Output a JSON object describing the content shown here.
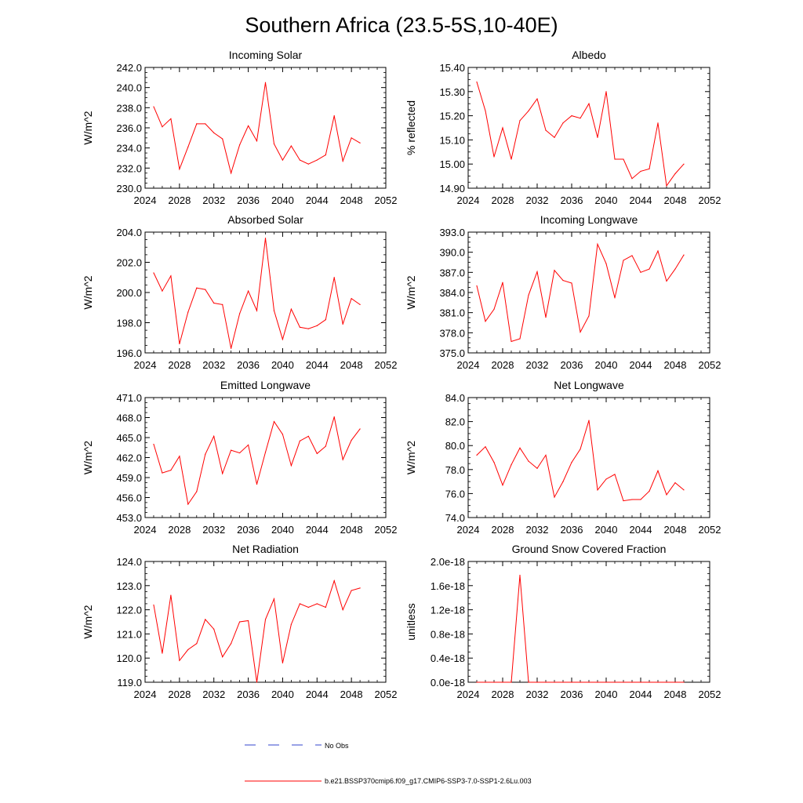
{
  "title": "Southern Africa (23.5-5S,10-40E)",
  "legend": [
    {
      "label": "No Obs",
      "color": "#3344cc",
      "style": "dashed"
    },
    {
      "label": "b.e21.BSSP370cmip6.f09_g17.CMIP6-SSP3-7.0-SSP1-2.6Lu.003",
      "color": "#ff0000",
      "style": "solid"
    }
  ],
  "chart_data": [
    {
      "type": "line",
      "title": "Incoming Solar",
      "ylabel": "W/m^2",
      "xlim": [
        2024,
        2052
      ],
      "xticks": [
        "2024",
        "2028",
        "2032",
        "2036",
        "2040",
        "2044",
        "2048",
        "2052"
      ],
      "ylim": [
        230.0,
        242.0
      ],
      "yticks": [
        "230.0",
        "232.0",
        "234.0",
        "236.0",
        "238.0",
        "240.0",
        "242.0"
      ],
      "series": [
        {
          "color": "#ff0000",
          "x": [
            2025,
            2026,
            2027,
            2028,
            2029,
            2030,
            2031,
            2032,
            2033,
            2034,
            2035,
            2036,
            2037,
            2038,
            2039,
            2040,
            2041,
            2042,
            2043,
            2044,
            2045,
            2046,
            2047,
            2048,
            2049
          ],
          "values": [
            238.1,
            236.1,
            236.9,
            231.9,
            234.1,
            236.4,
            236.4,
            235.5,
            234.9,
            231.5,
            234.3,
            236.2,
            234.7,
            240.5,
            234.4,
            232.8,
            234.2,
            232.8,
            232.4,
            232.8,
            233.3,
            237.2,
            232.7,
            235.0,
            234.5
          ]
        }
      ]
    },
    {
      "type": "line",
      "title": "Albedo",
      "ylabel": "% reflected",
      "xlim": [
        2024,
        2052
      ],
      "xticks": [
        "2024",
        "2028",
        "2032",
        "2036",
        "2040",
        "2044",
        "2048",
        "2052"
      ],
      "ylim": [
        14.9,
        15.4
      ],
      "yticks": [
        "14.90",
        "15.00",
        "15.10",
        "15.20",
        "15.30",
        "15.40"
      ],
      "series": [
        {
          "color": "#ff0000",
          "x": [
            2025,
            2026,
            2027,
            2028,
            2029,
            2030,
            2031,
            2032,
            2033,
            2034,
            2035,
            2036,
            2037,
            2038,
            2039,
            2040,
            2041,
            2042,
            2043,
            2044,
            2045,
            2046,
            2047,
            2048,
            2049
          ],
          "values": [
            15.34,
            15.22,
            15.03,
            15.15,
            15.02,
            15.18,
            15.22,
            15.27,
            15.14,
            15.11,
            15.17,
            15.2,
            15.19,
            15.25,
            15.11,
            15.3,
            15.02,
            15.02,
            14.94,
            14.97,
            14.98,
            15.17,
            14.91,
            14.96,
            15.0
          ]
        }
      ]
    },
    {
      "type": "line",
      "title": "Absorbed Solar",
      "ylabel": "W/m^2",
      "xlim": [
        2024,
        2052
      ],
      "xticks": [
        "2024",
        "2028",
        "2032",
        "2036",
        "2040",
        "2044",
        "2048",
        "2052"
      ],
      "ylim": [
        196.0,
        204.0
      ],
      "yticks": [
        "196.0",
        "198.0",
        "200.0",
        "202.0",
        "204.0"
      ],
      "series": [
        {
          "color": "#ff0000",
          "x": [
            2025,
            2026,
            2027,
            2028,
            2029,
            2030,
            2031,
            2032,
            2033,
            2034,
            2035,
            2036,
            2037,
            2038,
            2039,
            2040,
            2041,
            2042,
            2043,
            2044,
            2045,
            2046,
            2047,
            2048,
            2049
          ],
          "values": [
            201.3,
            200.1,
            201.1,
            196.6,
            198.7,
            200.3,
            200.2,
            199.3,
            199.2,
            196.3,
            198.6,
            200.1,
            198.8,
            203.6,
            198.8,
            196.9,
            198.9,
            197.7,
            197.6,
            197.8,
            198.2,
            201.0,
            197.9,
            199.6,
            199.2
          ]
        }
      ]
    },
    {
      "type": "line",
      "title": "Incoming Longwave",
      "ylabel": "W/m^2",
      "xlim": [
        2024,
        2052
      ],
      "xticks": [
        "2024",
        "2028",
        "2032",
        "2036",
        "2040",
        "2044",
        "2048",
        "2052"
      ],
      "ylim": [
        375.0,
        393.0
      ],
      "yticks": [
        "375.0",
        "378.0",
        "381.0",
        "384.0",
        "387.0",
        "390.0",
        "393.0"
      ],
      "series": [
        {
          "color": "#ff0000",
          "x": [
            2025,
            2026,
            2027,
            2028,
            2029,
            2030,
            2031,
            2032,
            2033,
            2034,
            2035,
            2036,
            2037,
            2038,
            2039,
            2040,
            2041,
            2042,
            2043,
            2044,
            2045,
            2046,
            2047,
            2048,
            2049
          ],
          "values": [
            385.0,
            379.7,
            381.5,
            385.5,
            376.7,
            377.1,
            383.6,
            387.1,
            380.3,
            387.3,
            385.8,
            385.4,
            378.1,
            380.5,
            391.2,
            388.3,
            383.2,
            388.8,
            389.5,
            387.0,
            387.5,
            390.2,
            385.7,
            387.5,
            389.6
          ]
        }
      ]
    },
    {
      "type": "line",
      "title": "Emitted Longwave",
      "ylabel": "W/m^2",
      "xlim": [
        2024,
        2052
      ],
      "xticks": [
        "2024",
        "2028",
        "2032",
        "2036",
        "2040",
        "2044",
        "2048",
        "2052"
      ],
      "ylim": [
        453.0,
        471.0
      ],
      "yticks": [
        "453.0",
        "456.0",
        "459.0",
        "462.0",
        "465.0",
        "468.0",
        "471.0"
      ],
      "series": [
        {
          "color": "#ff0000",
          "x": [
            2025,
            2026,
            2027,
            2028,
            2029,
            2030,
            2031,
            2032,
            2033,
            2034,
            2035,
            2036,
            2037,
            2038,
            2039,
            2040,
            2041,
            2042,
            2043,
            2044,
            2045,
            2046,
            2047,
            2048,
            2049
          ],
          "values": [
            464.0,
            459.7,
            460.1,
            462.2,
            455.0,
            456.9,
            462.5,
            465.2,
            459.6,
            463.1,
            462.7,
            463.9,
            458.0,
            462.8,
            467.4,
            465.5,
            460.8,
            464.5,
            465.2,
            462.6,
            463.7,
            468.1,
            461.7,
            464.6,
            466.3
          ]
        }
      ]
    },
    {
      "type": "line",
      "title": "Net Longwave",
      "ylabel": "W/m^2",
      "xlim": [
        2024,
        2052
      ],
      "xticks": [
        "2024",
        "2028",
        "2032",
        "2036",
        "2040",
        "2044",
        "2048",
        "2052"
      ],
      "ylim": [
        74.0,
        84.0
      ],
      "yticks": [
        "74.0",
        "76.0",
        "78.0",
        "80.0",
        "82.0",
        "84.0"
      ],
      "series": [
        {
          "color": "#ff0000",
          "x": [
            2025,
            2026,
            2027,
            2028,
            2029,
            2030,
            2031,
            2032,
            2033,
            2034,
            2035,
            2036,
            2037,
            2038,
            2039,
            2040,
            2041,
            2042,
            2043,
            2044,
            2045,
            2046,
            2047,
            2048,
            2049
          ],
          "values": [
            79.2,
            79.9,
            78.6,
            76.7,
            78.4,
            79.8,
            78.7,
            78.1,
            79.2,
            75.7,
            77.0,
            78.6,
            79.7,
            82.1,
            76.3,
            77.2,
            77.6,
            75.4,
            75.5,
            75.5,
            76.2,
            77.9,
            75.9,
            76.9,
            76.3
          ]
        }
      ]
    },
    {
      "type": "line",
      "title": "Net Radiation",
      "ylabel": "W/m^2",
      "xlim": [
        2024,
        2052
      ],
      "xticks": [
        "2024",
        "2028",
        "2032",
        "2036",
        "2040",
        "2044",
        "2048",
        "2052"
      ],
      "ylim": [
        119.0,
        124.0
      ],
      "yticks": [
        "119.0",
        "120.0",
        "121.0",
        "122.0",
        "123.0",
        "124.0"
      ],
      "series": [
        {
          "color": "#ff0000",
          "x": [
            2025,
            2026,
            2027,
            2028,
            2029,
            2030,
            2031,
            2032,
            2033,
            2034,
            2035,
            2036,
            2037,
            2038,
            2039,
            2040,
            2041,
            2042,
            2043,
            2044,
            2045,
            2046,
            2047,
            2048,
            2049
          ],
          "values": [
            122.2,
            120.2,
            122.6,
            119.9,
            120.35,
            120.6,
            121.6,
            121.2,
            120.05,
            120.6,
            121.5,
            121.55,
            119.0,
            121.6,
            122.45,
            119.8,
            121.4,
            122.25,
            122.1,
            122.25,
            122.1,
            123.2,
            122.0,
            122.8,
            122.9
          ]
        }
      ]
    },
    {
      "type": "line",
      "title": "Ground Snow Covered Fraction",
      "ylabel": "unitless",
      "xlim": [
        2024,
        2052
      ],
      "xticks": [
        "2024",
        "2028",
        "2032",
        "2036",
        "2040",
        "2044",
        "2048",
        "2052"
      ],
      "ylim": [
        0.0,
        2.2
      ],
      "yticks": [
        "0.0e-18",
        "0.4e-18",
        "0.8e-18",
        "1.2e-18",
        "1.6e-18",
        "2.0e-18"
      ],
      "series": [
        {
          "color": "#ff0000",
          "x": [
            2025,
            2026,
            2027,
            2028,
            2029,
            2030,
            2031,
            2032,
            2033,
            2034,
            2035,
            2036,
            2037,
            2038,
            2039,
            2040,
            2041,
            2042,
            2043,
            2044,
            2045,
            2046,
            2047,
            2048,
            2049
          ],
          "values": [
            0,
            0,
            0,
            0,
            0,
            1.95,
            0,
            0,
            0,
            0,
            0,
            0,
            0,
            0,
            0,
            0,
            0,
            0,
            0,
            0,
            0,
            0,
            0,
            0,
            0
          ]
        }
      ]
    }
  ]
}
